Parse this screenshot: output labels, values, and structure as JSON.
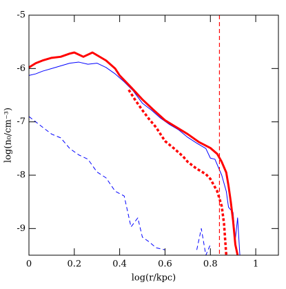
{
  "chart_data": {
    "type": "line",
    "xlabel": "log(r/kpc)",
    "ylabel": "log(n₀/cm⁻³)",
    "xlim": [
      0,
      1.1
    ],
    "ylim": [
      -9.5,
      -5
    ],
    "xticks": [
      0,
      0.2,
      0.4,
      0.6,
      0.8,
      1
    ],
    "yticks": [
      -9,
      -8,
      -7,
      -6,
      -5
    ],
    "vlines": [
      {
        "x": 0.84,
        "color": "#ff0000",
        "style": "dashed"
      }
    ],
    "series": [
      {
        "color": "#0000ff",
        "style": "dashed",
        "width": 1,
        "x": [
          0,
          0.03,
          0.06,
          0.1,
          0.14,
          0.18,
          0.22,
          0.26,
          0.3,
          0.34,
          0.38,
          0.42,
          0.45,
          0.48,
          0.5,
          0.53,
          0.56,
          0.6,
          0.62,
          0.74,
          0.76,
          0.78,
          0.8
        ],
        "values": [
          -6.9,
          -7.0,
          -7.1,
          -7.23,
          -7.3,
          -7.5,
          -7.62,
          -7.7,
          -7.94,
          -8.05,
          -8.3,
          -8.39,
          -8.97,
          -8.8,
          -9.16,
          -9.25,
          -9.36,
          -9.4,
          null,
          -9.4,
          -9.0,
          -9.5,
          -9.3
        ]
      },
      {
        "color": "#0000ff",
        "style": "solid",
        "width": 1,
        "x": [
          0,
          0.03,
          0.06,
          0.1,
          0.14,
          0.18,
          0.22,
          0.26,
          0.3,
          0.34,
          0.38,
          0.42,
          0.46,
          0.5,
          0.54,
          0.58,
          0.62,
          0.66,
          0.7,
          0.74,
          0.78,
          0.8,
          0.82,
          0.85,
          0.87,
          0.88,
          0.9,
          0.91,
          0.92,
          0.93
        ],
        "values": [
          -6.13,
          -6.1,
          -6.05,
          -6.0,
          -5.95,
          -5.9,
          -5.88,
          -5.92,
          -5.9,
          -5.98,
          -6.1,
          -6.25,
          -6.42,
          -6.65,
          -6.78,
          -6.93,
          -7.05,
          -7.15,
          -7.29,
          -7.4,
          -7.5,
          -7.68,
          -7.7,
          -8.0,
          -8.3,
          -8.6,
          -8.7,
          -9.2,
          -8.8,
          -9.5
        ]
      },
      {
        "color": "#ff0000",
        "style": "dotted",
        "width": 3.5,
        "x": [
          0.44,
          0.47,
          0.5,
          0.53,
          0.56,
          0.6,
          0.64,
          0.68,
          0.7,
          0.74,
          0.78,
          0.8,
          0.83,
          0.85,
          0.86,
          0.87
        ],
        "values": [
          -6.4,
          -6.6,
          -6.78,
          -6.95,
          -7.1,
          -7.36,
          -7.5,
          -7.65,
          -7.75,
          -7.88,
          -7.98,
          -8.07,
          -8.3,
          -8.58,
          -8.9,
          -9.5
        ]
      },
      {
        "color": "#ff0000",
        "style": "solid",
        "width": 3,
        "x": [
          0,
          0.03,
          0.06,
          0.1,
          0.14,
          0.18,
          0.2,
          0.24,
          0.28,
          0.3,
          0.34,
          0.38,
          0.4,
          0.45,
          0.5,
          0.55,
          0.6,
          0.65,
          0.7,
          0.75,
          0.8,
          0.83,
          0.85,
          0.87,
          0.88,
          0.89,
          0.9,
          0.91,
          0.92
        ],
        "values": [
          -5.98,
          -5.9,
          -5.85,
          -5.8,
          -5.78,
          -5.72,
          -5.7,
          -5.78,
          -5.7,
          -5.75,
          -5.85,
          -6.0,
          -6.13,
          -6.35,
          -6.58,
          -6.78,
          -6.97,
          -7.1,
          -7.23,
          -7.38,
          -7.49,
          -7.6,
          -7.75,
          -7.95,
          -8.2,
          -8.5,
          -8.85,
          -9.3,
          -9.5
        ]
      }
    ]
  }
}
